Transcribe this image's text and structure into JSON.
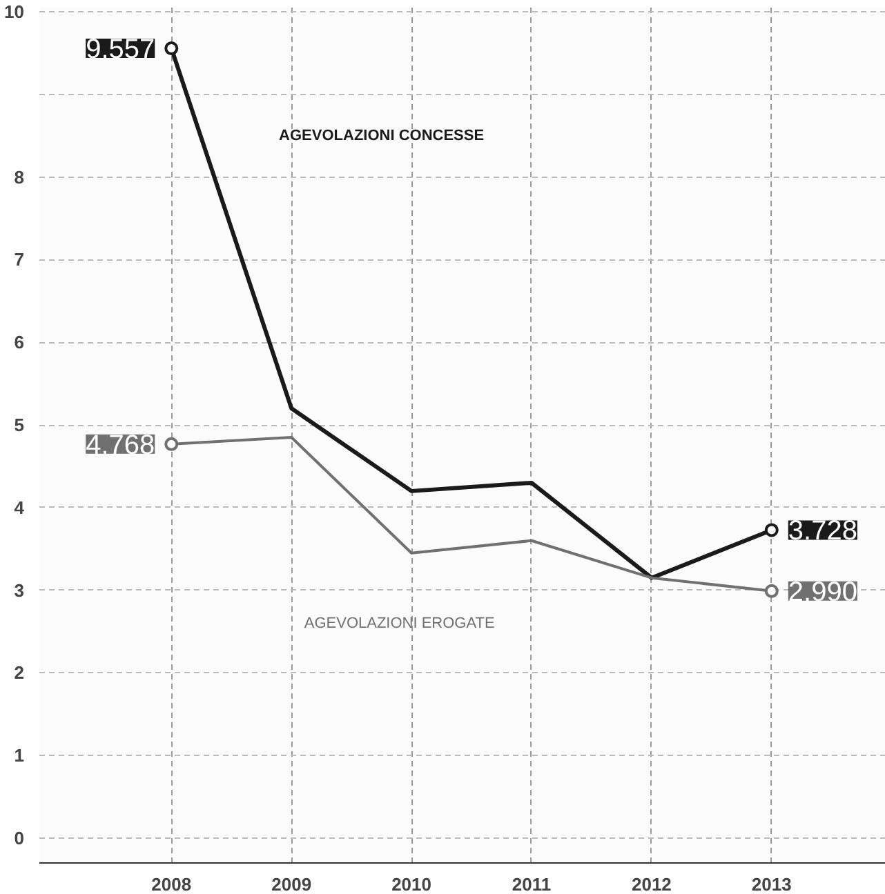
{
  "chart_data": {
    "type": "line",
    "categories": [
      "2008",
      "2009",
      "2010",
      "2011",
      "2012",
      "2013"
    ],
    "series": [
      {
        "name": "AGEVOLAZIONI CONCESSE",
        "color": "#1a1a1a",
        "values": [
          9.557,
          5.2,
          4.2,
          4.3,
          3.15,
          3.728
        ],
        "value_labels": [
          "9.557",
          null,
          null,
          null,
          null,
          "3.728"
        ]
      },
      {
        "name": "AGEVOLAZIONI EROGATE",
        "color": "#707070",
        "values": [
          4.768,
          4.85,
          3.45,
          3.6,
          3.15,
          2.99
        ],
        "value_labels": [
          "4.768",
          null,
          null,
          null,
          null,
          "2.990"
        ]
      }
    ],
    "ylim": [
      -0.3,
      10.05
    ],
    "yticks": [
      0,
      1,
      2,
      3,
      4,
      5,
      6,
      7,
      8,
      {
        "value": 9,
        "label": null
      },
      10
    ],
    "grid": true,
    "line_style": "solid"
  }
}
